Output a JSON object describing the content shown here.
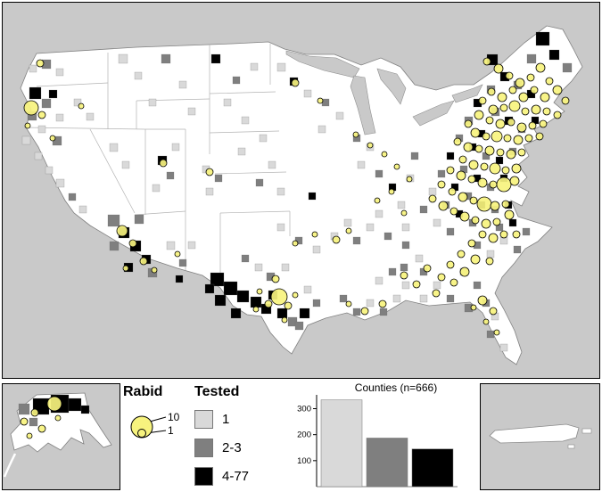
{
  "legend_rabid": {
    "title": "Rabid",
    "max_label": "10",
    "min_label": "1"
  },
  "legend_tested": {
    "title": "Tested",
    "items": [
      {
        "label": "1",
        "color": "#d9d9d9"
      },
      {
        "label": "2-3",
        "color": "#7f7f7f"
      },
      {
        "label": "4-77",
        "color": "#000000"
      }
    ]
  },
  "chart_data": {
    "type": "bar",
    "title": "Counties (n=666)",
    "categories": [
      "1",
      "2-3",
      "4-77"
    ],
    "values": [
      334,
      187,
      145
    ],
    "colors": [
      "#d9d9d9",
      "#7f7f7f",
      "#000000"
    ],
    "yticks": [
      100,
      200,
      300
    ],
    "ylim": [
      0,
      360
    ],
    "grid": false,
    "legend_position": "none"
  },
  "map": {
    "water_color": "#c9c9c9",
    "land_color": "#ffffff",
    "rabid_color": "#f7f37e",
    "class_colors": {
      "l": "#d9d9d9",
      "m": "#7f7f7f",
      "b": "#000000"
    },
    "counties": [
      [
        30,
        95,
        13,
        "b"
      ],
      [
        44,
        108,
        10,
        "m"
      ],
      [
        28,
        122,
        10,
        "m"
      ],
      [
        52,
        98,
        9,
        "b"
      ],
      [
        40,
        138,
        8,
        "l"
      ],
      [
        60,
        125,
        8,
        "l"
      ],
      [
        22,
        150,
        9,
        "l"
      ],
      [
        36,
        168,
        8,
        "l"
      ],
      [
        56,
        150,
        10,
        "m"
      ],
      [
        60,
        198,
        9,
        "l"
      ],
      [
        74,
        214,
        8,
        "m"
      ],
      [
        48,
        184,
        8,
        "l"
      ],
      [
        86,
        228,
        8,
        "l"
      ],
      [
        44,
        64,
        10,
        "m"
      ],
      [
        60,
        74,
        8,
        "l"
      ],
      [
        30,
        70,
        8,
        "l"
      ],
      [
        80,
        108,
        8,
        "l"
      ],
      [
        94,
        124,
        8,
        "l"
      ],
      [
        120,
        158,
        9,
        "l"
      ],
      [
        134,
        178,
        8,
        "l"
      ],
      [
        174,
        172,
        10,
        "b"
      ],
      [
        184,
        190,
        8,
        "m"
      ],
      [
        168,
        204,
        8,
        "l"
      ],
      [
        190,
        158,
        8,
        "l"
      ],
      [
        118,
        238,
        13,
        "m"
      ],
      [
        130,
        252,
        12,
        "b"
      ],
      [
        143,
        267,
        12,
        "b"
      ],
      [
        156,
        283,
        10,
        "b"
      ],
      [
        120,
        268,
        10,
        "m"
      ],
      [
        136,
        292,
        10,
        "b"
      ],
      [
        163,
        298,
        10,
        "m"
      ],
      [
        148,
        238,
        10,
        "m"
      ],
      [
        184,
        268,
        9,
        "l"
      ],
      [
        198,
        288,
        8,
        "m"
      ],
      [
        208,
        268,
        8,
        "l"
      ],
      [
        194,
        306,
        8,
        "b"
      ],
      [
        130,
        58,
        10,
        "l"
      ],
      [
        148,
        78,
        8,
        "l"
      ],
      [
        178,
        58,
        10,
        "m"
      ],
      [
        198,
        88,
        8,
        "l"
      ],
      [
        164,
        108,
        8,
        "l"
      ],
      [
        208,
        118,
        8,
        "l"
      ],
      [
        224,
        183,
        8,
        "l"
      ],
      [
        238,
        193,
        8,
        "m"
      ],
      [
        228,
        208,
        8,
        "l"
      ],
      [
        234,
        58,
        10,
        "b"
      ],
      [
        258,
        83,
        8,
        "m"
      ],
      [
        278,
        68,
        8,
        "l"
      ],
      [
        248,
        108,
        8,
        "l"
      ],
      [
        268,
        128,
        8,
        "l"
      ],
      [
        288,
        148,
        8,
        "l"
      ],
      [
        264,
        163,
        8,
        "l"
      ],
      [
        298,
        178,
        8,
        "l"
      ],
      [
        284,
        198,
        8,
        "m"
      ],
      [
        308,
        208,
        8,
        "l"
      ],
      [
        308,
        68,
        9,
        "l"
      ],
      [
        322,
        84,
        9,
        "b"
      ],
      [
        338,
        98,
        8,
        "l"
      ],
      [
        358,
        108,
        8,
        "m"
      ],
      [
        374,
        123,
        8,
        "l"
      ],
      [
        354,
        138,
        8,
        "l"
      ],
      [
        393,
        148,
        8,
        "m"
      ],
      [
        408,
        158,
        8,
        "l"
      ],
      [
        233,
        303,
        15,
        "b"
      ],
      [
        248,
        313,
        15,
        "b"
      ],
      [
        263,
        323,
        13,
        "b"
      ],
      [
        278,
        330,
        12,
        "b"
      ],
      [
        290,
        338,
        11,
        "b"
      ],
      [
        238,
        328,
        12,
        "b"
      ],
      [
        256,
        343,
        11,
        "b"
      ],
      [
        227,
        316,
        10,
        "b"
      ],
      [
        298,
        323,
        10,
        "b"
      ],
      [
        308,
        343,
        11,
        "b"
      ],
      [
        320,
        353,
        10,
        "m"
      ],
      [
        333,
        343,
        11,
        "b"
      ],
      [
        328,
        358,
        9,
        "m"
      ],
      [
        296,
        303,
        9,
        "m"
      ],
      [
        283,
        293,
        8,
        "l"
      ],
      [
        313,
        293,
        8,
        "l"
      ],
      [
        268,
        283,
        8,
        "m"
      ],
      [
        338,
        318,
        8,
        "l"
      ],
      [
        348,
        333,
        8,
        "m"
      ],
      [
        308,
        248,
        8,
        "l"
      ],
      [
        328,
        263,
        8,
        "m"
      ],
      [
        348,
        273,
        8,
        "l"
      ],
      [
        368,
        258,
        8,
        "l"
      ],
      [
        383,
        243,
        8,
        "l"
      ],
      [
        343,
        213,
        8,
        "b"
      ],
      [
        393,
        263,
        8,
        "m"
      ],
      [
        378,
        328,
        8,
        "m"
      ],
      [
        393,
        343,
        8,
        "m"
      ],
      [
        408,
        333,
        8,
        "l"
      ],
      [
        423,
        343,
        8,
        "m"
      ],
      [
        438,
        328,
        8,
        "l"
      ],
      [
        418,
        308,
        8,
        "l"
      ],
      [
        433,
        298,
        8,
        "m"
      ],
      [
        448,
        313,
        8,
        "l"
      ],
      [
        408,
        248,
        8,
        "l"
      ],
      [
        428,
        258,
        8,
        "m"
      ],
      [
        448,
        248,
        8,
        "l"
      ],
      [
        418,
        233,
        8,
        "l"
      ],
      [
        443,
        223,
        8,
        "l"
      ],
      [
        398,
        178,
        8,
        "l"
      ],
      [
        418,
        188,
        8,
        "m"
      ],
      [
        433,
        203,
        8,
        "b"
      ],
      [
        453,
        193,
        8,
        "l"
      ],
      [
        458,
        168,
        8,
        "m"
      ],
      [
        468,
        298,
        8,
        "m"
      ],
      [
        483,
        313,
        8,
        "l"
      ],
      [
        498,
        328,
        8,
        "m"
      ],
      [
        513,
        298,
        8,
        "l"
      ],
      [
        528,
        313,
        8,
        "m"
      ],
      [
        468,
        328,
        8,
        "l"
      ],
      [
        518,
        338,
        9,
        "m"
      ],
      [
        538,
        333,
        8,
        "m"
      ],
      [
        548,
        348,
        8,
        "l"
      ],
      [
        543,
        368,
        8,
        "m"
      ],
      [
        558,
        383,
        8,
        "l"
      ],
      [
        543,
        58,
        12,
        "b"
      ],
      [
        598,
        33,
        15,
        "b"
      ],
      [
        613,
        53,
        11,
        "b"
      ],
      [
        628,
        68,
        10,
        "m"
      ],
      [
        588,
        58,
        10,
        "m"
      ],
      [
        558,
        78,
        10,
        "b"
      ],
      [
        573,
        88,
        9,
        "m"
      ],
      [
        588,
        98,
        9,
        "b"
      ],
      [
        543,
        93,
        9,
        "m"
      ],
      [
        528,
        108,
        9,
        "b"
      ],
      [
        548,
        118,
        9,
        "m"
      ],
      [
        563,
        128,
        9,
        "b"
      ],
      [
        578,
        138,
        8,
        "m"
      ],
      [
        593,
        128,
        8,
        "b"
      ],
      [
        518,
        128,
        9,
        "m"
      ],
      [
        533,
        143,
        8,
        "b"
      ],
      [
        508,
        148,
        8,
        "m"
      ],
      [
        523,
        158,
        8,
        "b"
      ],
      [
        538,
        168,
        8,
        "m"
      ],
      [
        553,
        173,
        8,
        "b"
      ],
      [
        568,
        163,
        8,
        "m"
      ],
      [
        498,
        168,
        8,
        "b"
      ],
      [
        513,
        183,
        8,
        "m"
      ],
      [
        528,
        193,
        8,
        "b"
      ],
      [
        543,
        203,
        8,
        "m"
      ],
      [
        558,
        193,
        8,
        "b"
      ],
      [
        488,
        188,
        8,
        "m"
      ],
      [
        503,
        203,
        8,
        "b"
      ],
      [
        518,
        213,
        8,
        "m"
      ],
      [
        533,
        223,
        8,
        "b"
      ],
      [
        548,
        228,
        8,
        "m"
      ],
      [
        563,
        223,
        8,
        "b"
      ],
      [
        478,
        208,
        8,
        "l"
      ],
      [
        493,
        223,
        8,
        "m"
      ],
      [
        508,
        233,
        8,
        "b"
      ],
      [
        523,
        243,
        8,
        "m"
      ],
      [
        468,
        228,
        8,
        "m"
      ],
      [
        483,
        243,
        8,
        "l"
      ],
      [
        498,
        253,
        8,
        "m"
      ],
      [
        448,
        268,
        8,
        "m"
      ],
      [
        463,
        283,
        8,
        "l"
      ],
      [
        446,
        293,
        8,
        "m"
      ],
      [
        528,
        268,
        8,
        "m"
      ],
      [
        543,
        278,
        8,
        "l"
      ],
      [
        553,
        248,
        8,
        "m"
      ],
      [
        568,
        243,
        8,
        "b"
      ],
      [
        583,
        253,
        8,
        "m"
      ],
      [
        558,
        263,
        8,
        "l"
      ],
      [
        573,
        273,
        8,
        "m"
      ]
    ],
    "markers": [
      [
        543,
        66,
        4
      ],
      [
        556,
        74,
        5
      ],
      [
        568,
        82,
        4
      ],
      [
        580,
        90,
        5
      ],
      [
        592,
        84,
        4
      ],
      [
        603,
        73,
        5
      ],
      [
        613,
        88,
        4
      ],
      [
        622,
        98,
        5
      ],
      [
        631,
        110,
        4
      ],
      [
        608,
        106,
        5
      ],
      [
        596,
        98,
        4
      ],
      [
        584,
        106,
        5
      ],
      [
        572,
        98,
        4
      ],
      [
        560,
        106,
        5
      ],
      [
        548,
        100,
        4
      ],
      [
        538,
        110,
        4
      ],
      [
        550,
        120,
        5
      ],
      [
        562,
        118,
        4
      ],
      [
        574,
        116,
        6
      ],
      [
        586,
        122,
        4
      ],
      [
        598,
        120,
        5
      ],
      [
        610,
        122,
        4
      ],
      [
        622,
        126,
        4
      ],
      [
        546,
        132,
        4
      ],
      [
        558,
        136,
        5
      ],
      [
        570,
        134,
        4
      ],
      [
        582,
        140,
        5
      ],
      [
        594,
        138,
        4
      ],
      [
        606,
        136,
        4
      ],
      [
        534,
        126,
        5
      ],
      [
        522,
        136,
        4
      ],
      [
        530,
        146,
        5
      ],
      [
        542,
        150,
        4
      ],
      [
        554,
        150,
        6
      ],
      [
        566,
        152,
        4
      ],
      [
        578,
        154,
        5
      ],
      [
        590,
        152,
        4
      ],
      [
        602,
        150,
        4
      ],
      [
        510,
        156,
        4
      ],
      [
        522,
        162,
        5
      ],
      [
        534,
        164,
        4
      ],
      [
        546,
        166,
        5
      ],
      [
        558,
        168,
        4
      ],
      [
        570,
        170,
        5
      ],
      [
        582,
        168,
        4
      ],
      [
        516,
        176,
        4
      ],
      [
        528,
        182,
        5
      ],
      [
        540,
        184,
        4
      ],
      [
        552,
        186,
        6
      ],
      [
        564,
        188,
        4
      ],
      [
        576,
        186,
        5
      ],
      [
        502,
        188,
        4
      ],
      [
        514,
        194,
        5
      ],
      [
        526,
        198,
        4
      ],
      [
        538,
        202,
        5
      ],
      [
        550,
        204,
        4
      ],
      [
        562,
        204,
        8
      ],
      [
        574,
        200,
        5
      ],
      [
        492,
        204,
        4
      ],
      [
        504,
        212,
        4
      ],
      [
        516,
        218,
        5
      ],
      [
        528,
        222,
        4
      ],
      [
        540,
        226,
        8
      ],
      [
        552,
        228,
        5
      ],
      [
        564,
        226,
        4
      ],
      [
        482,
        220,
        4
      ],
      [
        494,
        228,
        5
      ],
      [
        506,
        234,
        4
      ],
      [
        518,
        240,
        5
      ],
      [
        530,
        244,
        4
      ],
      [
        542,
        248,
        5
      ],
      [
        554,
        246,
        4
      ],
      [
        568,
        238,
        5
      ],
      [
        538,
        260,
        4
      ],
      [
        550,
        264,
        5
      ],
      [
        562,
        260,
        4
      ],
      [
        576,
        260,
        4
      ],
      [
        526,
        270,
        4
      ],
      [
        514,
        282,
        4
      ],
      [
        530,
        288,
        5
      ],
      [
        546,
        290,
        4
      ],
      [
        502,
        294,
        4
      ],
      [
        518,
        302,
        5
      ],
      [
        492,
        308,
        4
      ],
      [
        506,
        314,
        4
      ],
      [
        476,
        298,
        4
      ],
      [
        464,
        316,
        4
      ],
      [
        450,
        306,
        4
      ],
      [
        486,
        326,
        4
      ],
      [
        538,
        334,
        5
      ],
      [
        550,
        346,
        4
      ],
      [
        542,
        358,
        3
      ],
      [
        528,
        342,
        3
      ],
      [
        554,
        370,
        3
      ],
      [
        426,
        338,
        4
      ],
      [
        406,
        346,
        4
      ],
      [
        388,
        338,
        3
      ],
      [
        310,
        330,
        9
      ],
      [
        298,
        338,
        4
      ],
      [
        320,
        340,
        4
      ],
      [
        288,
        324,
        3
      ],
      [
        306,
        310,
        4
      ],
      [
        328,
        328,
        3
      ],
      [
        316,
        356,
        3
      ],
      [
        284,
        344,
        3
      ],
      [
        328,
        270,
        3
      ],
      [
        350,
        260,
        3
      ],
      [
        374,
        266,
        4
      ],
      [
        388,
        256,
        3
      ],
      [
        396,
        148,
        3
      ],
      [
        412,
        160,
        3
      ],
      [
        328,
        90,
        4
      ],
      [
        356,
        110,
        3
      ],
      [
        428,
        170,
        3
      ],
      [
        442,
        184,
        3
      ],
      [
        456,
        198,
        3
      ],
      [
        436,
        212,
        3
      ],
      [
        420,
        222,
        3
      ],
      [
        450,
        236,
        3
      ],
      [
        232,
        190,
        4
      ],
      [
        180,
        180,
        4
      ],
      [
        134,
        256,
        6
      ],
      [
        146,
        270,
        4
      ],
      [
        158,
        290,
        4
      ],
      [
        170,
        300,
        3
      ],
      [
        138,
        298,
        3
      ],
      [
        196,
        282,
        3
      ],
      [
        32,
        118,
        8
      ],
      [
        44,
        126,
        4
      ],
      [
        28,
        138,
        3
      ],
      [
        56,
        152,
        3
      ],
      [
        42,
        68,
        4
      ],
      [
        88,
        116,
        3
      ]
    ]
  },
  "alaska": {
    "counties": [
      [
        34,
        16,
        18,
        "b"
      ],
      [
        54,
        12,
        20,
        "b"
      ],
      [
        74,
        16,
        14,
        "b"
      ],
      [
        18,
        22,
        12,
        "m"
      ],
      [
        88,
        24,
        9,
        "b"
      ],
      [
        30,
        38,
        9,
        "m"
      ]
    ],
    "markers": [
      [
        58,
        22,
        8
      ],
      [
        36,
        32,
        4
      ],
      [
        24,
        42,
        4
      ],
      [
        44,
        50,
        4
      ],
      [
        62,
        38,
        3
      ],
      [
        30,
        58,
        3
      ]
    ]
  }
}
